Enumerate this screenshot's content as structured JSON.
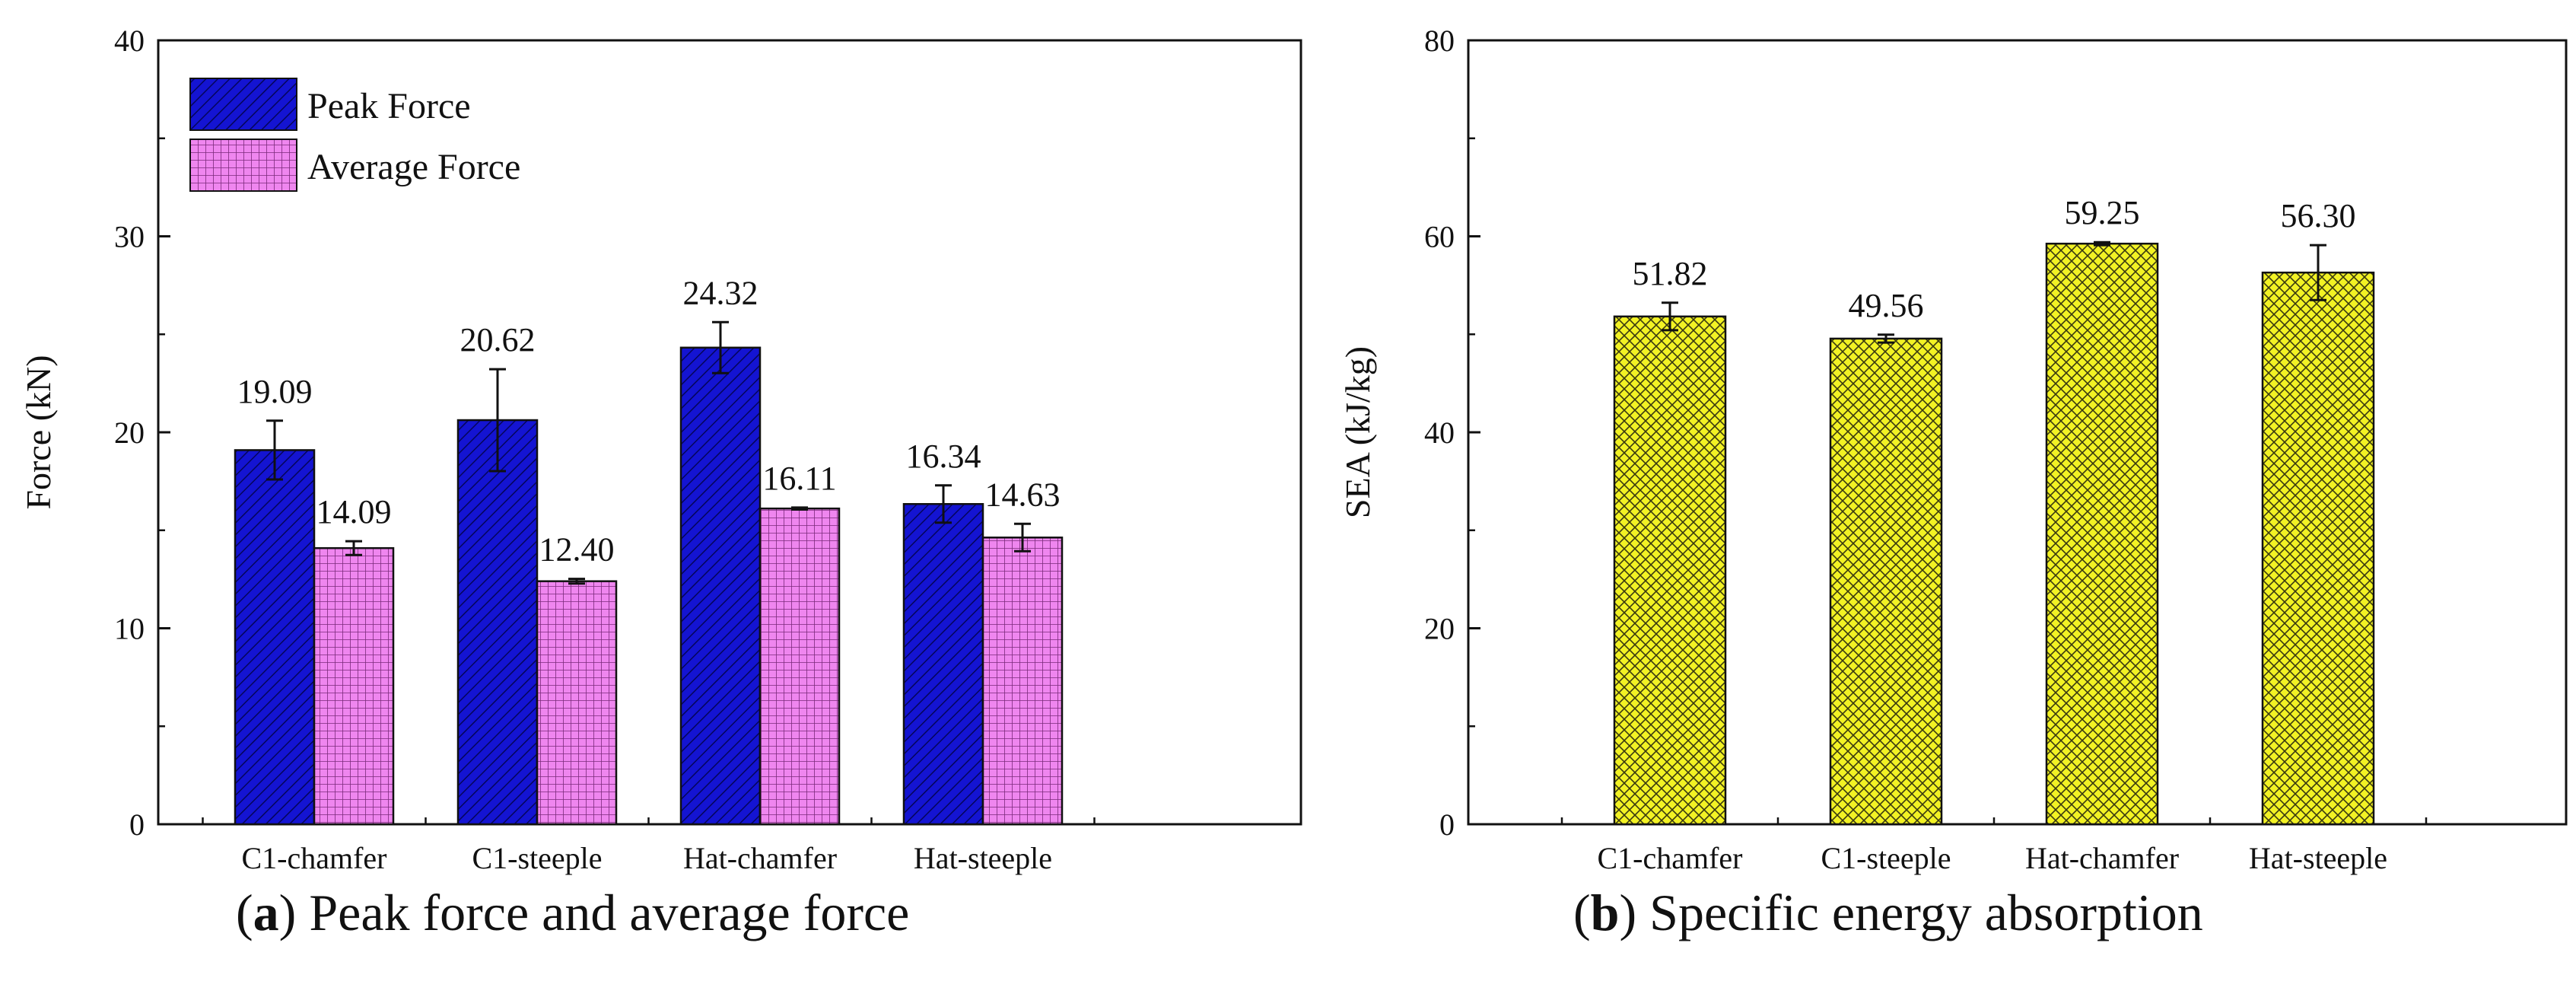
{
  "chart_data": [
    {
      "type": "bar",
      "panel": "a",
      "caption_letter": "a",
      "caption_text": "Peak force and average force",
      "categories": [
        "C1-chamfer",
        "C1-steeple",
        "Hat-chamfer",
        "Hat-steeple"
      ],
      "series": [
        {
          "name": "Peak Force",
          "values": [
            19.09,
            20.62,
            24.32,
            16.34
          ],
          "errors": [
            1.5,
            2.6,
            1.3,
            0.95
          ],
          "color": "#1010c8",
          "pattern": "diagonal-dense"
        },
        {
          "name": "Average Force",
          "values": [
            14.09,
            12.4,
            16.11,
            14.63
          ],
          "errors": [
            0.35,
            0.12,
            0.05,
            0.7
          ],
          "color": "#ee80ee",
          "pattern": "grid"
        }
      ],
      "labels": [
        "19.09",
        "20.62",
        "24.32",
        "16.34",
        "14.09",
        "12.40",
        "16.11",
        "14.63"
      ],
      "xlabel": "",
      "ylabel": "Force (kN)",
      "ylim": [
        0,
        40
      ],
      "yticks": [
        "0",
        "10",
        "20",
        "30",
        "40"
      ],
      "legend_position": "top-left",
      "grid": false
    },
    {
      "type": "bar",
      "panel": "b",
      "caption_letter": "b",
      "caption_text": "Specific energy absorption",
      "categories": [
        "C1-chamfer",
        "C1-steeple",
        "Hat-chamfer",
        "Hat-steeple"
      ],
      "series": [
        {
          "name": "SEA",
          "values": [
            51.82,
            49.56,
            59.25,
            56.3
          ],
          "errors": [
            1.4,
            0.4,
            0.15,
            2.8
          ],
          "color": "#f0f020",
          "pattern": "crosshatch"
        }
      ],
      "labels": [
        "51.82",
        "49.56",
        "59.25",
        "56.30"
      ],
      "xlabel": "",
      "ylabel": "SEA (kJ/kg)",
      "ylim": [
        0,
        80
      ],
      "yticks": [
        "0",
        "20",
        "40",
        "60",
        "80"
      ],
      "grid": false
    }
  ]
}
